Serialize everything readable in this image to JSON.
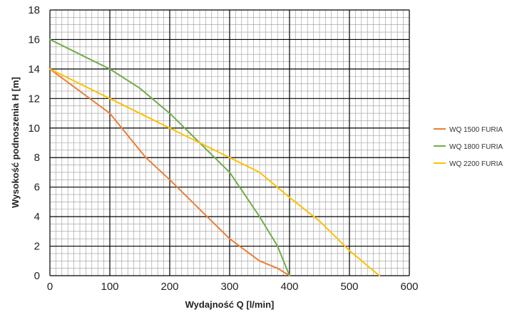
{
  "chart_data": {
    "type": "line",
    "xlabel": "Wydajność Q [l/min]",
    "ylabel": "Wysokość podnoszenia H [m]",
    "xlim": [
      0,
      600
    ],
    "ylim": [
      0,
      18
    ],
    "x_ticks": [
      "0",
      "100",
      "200",
      "300",
      "400",
      "500",
      "600"
    ],
    "y_ticks": [
      "0",
      "2",
      "4",
      "6",
      "8",
      "10",
      "12",
      "14",
      "16",
      "18"
    ],
    "x_major_step": 100,
    "x_minor_step": 10,
    "y_major_step": 2,
    "y_minor_step": 0.5,
    "grid": true,
    "legend_position": "right",
    "series": [
      {
        "name": "WQ 1500 FURIA",
        "color": "#ed7d31",
        "x": [
          0,
          50,
          100,
          160,
          200,
          250,
          300,
          350,
          380,
          400
        ],
        "y": [
          14,
          12.5,
          11,
          8,
          6.5,
          4.5,
          2.5,
          1,
          0.5,
          0
        ]
      },
      {
        "name": "WQ 1800 FURIA",
        "color": "#70ad47",
        "x": [
          0,
          50,
          100,
          150,
          200,
          250,
          300,
          350,
          380,
          400
        ],
        "y": [
          16,
          15,
          14,
          12.7,
          11,
          9,
          7,
          4,
          2,
          0
        ]
      },
      {
        "name": "WQ 2200 FURIA",
        "color": "#ffc000",
        "x": [
          0,
          100,
          200,
          300,
          350,
          400,
          450,
          500,
          550
        ],
        "y": [
          14,
          12,
          10,
          8,
          7,
          5.3,
          3.7,
          1.7,
          0
        ]
      }
    ]
  }
}
